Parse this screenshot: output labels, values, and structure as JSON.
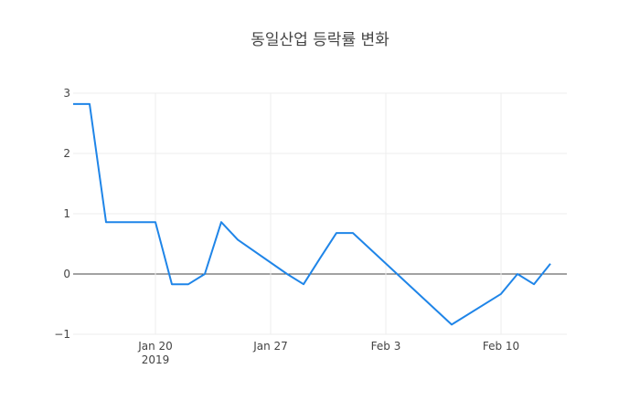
{
  "chart_data": {
    "type": "line",
    "title": "동일산업 등락률 변화",
    "xlabel": "",
    "ylabel": "",
    "x_start": "2019-01-15",
    "x_end": "2019-02-14",
    "ylim": [
      -1,
      3
    ],
    "yticks": [
      -1,
      0,
      1,
      2,
      3
    ],
    "ytick_labels": [
      "−1",
      "0",
      "1",
      "2",
      "3"
    ],
    "xticks": [
      {
        "date": "2019-01-20",
        "label": "Jan 20",
        "sublabel": "2019"
      },
      {
        "date": "2019-01-27",
        "label": "Jan 27",
        "sublabel": ""
      },
      {
        "date": "2019-02-03",
        "label": "Feb 3",
        "sublabel": ""
      },
      {
        "date": "2019-02-10",
        "label": "Feb 10",
        "sublabel": ""
      }
    ],
    "grid": true,
    "zero_line": true,
    "line_color": "#1f85e8",
    "series": [
      {
        "x": [
          "2019-01-15",
          "2019-01-16",
          "2019-01-17",
          "2019-01-18",
          "2019-01-20",
          "2019-01-21",
          "2019-01-22",
          "2019-01-23",
          "2019-01-24",
          "2019-01-25",
          "2019-01-28",
          "2019-01-29",
          "2019-01-30",
          "2019-01-31",
          "2019-02-01",
          "2019-02-07",
          "2019-02-10",
          "2019-02-11",
          "2019-02-12",
          "2019-02-13"
        ],
        "y": [
          2.82,
          2.82,
          0.86,
          0.86,
          0.86,
          -0.17,
          -0.17,
          0.0,
          0.86,
          0.57,
          0.0,
          -0.17,
          0.26,
          0.68,
          0.68,
          -0.84,
          -0.33,
          0.0,
          -0.17,
          0.17
        ]
      }
    ]
  }
}
